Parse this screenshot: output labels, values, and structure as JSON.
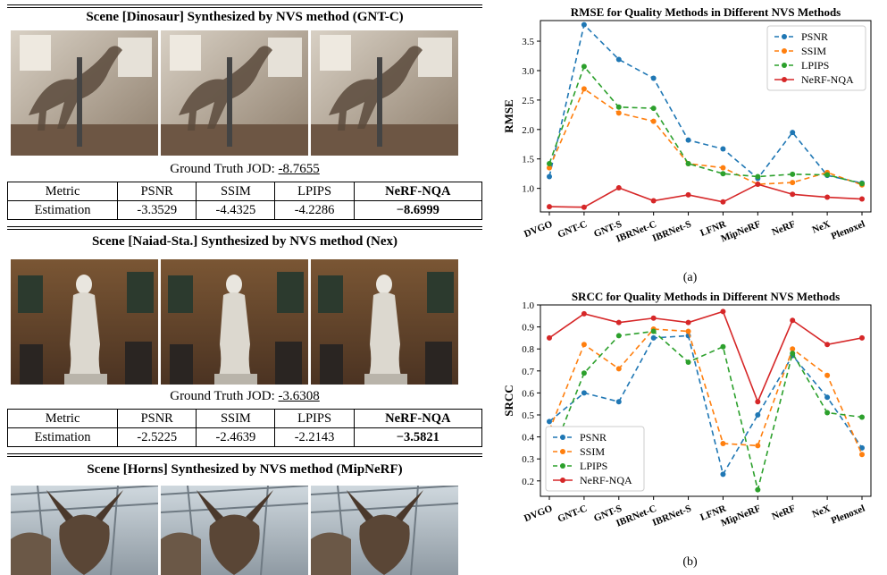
{
  "scenes": [
    {
      "title": "Scene [Dinosaur] Synthesized by NVS method (GNT-C)",
      "gt_label": "Ground Truth JOD: ",
      "gt_value": "-8.7655",
      "headers": [
        "Metric",
        "PSNR",
        "SSIM",
        "LPIPS",
        "NeRF-NQA"
      ],
      "row": [
        "Estimation",
        "-3.3529",
        "-4.4325",
        "-4.2286",
        "−8.6999"
      ]
    },
    {
      "title": "Scene [Naiad-Sta.] Synthesized by NVS method (Nex)",
      "gt_label": "Ground Truth JOD: ",
      "gt_value": "-3.6308",
      "headers": [
        "Metric",
        "PSNR",
        "SSIM",
        "LPIPS",
        "NeRF-NQA"
      ],
      "row": [
        "Estimation",
        "-2.5225",
        "-2.4639",
        "-2.2143",
        "−3.5821"
      ]
    },
    {
      "title": "Scene [Horns] Synthesized by NVS method (MipNeRF)"
    }
  ],
  "chart_data": [
    {
      "type": "line",
      "title": "RMSE for Quality Methods in Different NVS Methods",
      "ylabel": "RMSE",
      "xlabel": "",
      "caption": "(a)",
      "categories": [
        "DVGO",
        "GNT-C",
        "GNT-S",
        "IBRNet-C",
        "IBRNet-S",
        "LFNR",
        "MipNeRF",
        "NeRF",
        "NeX",
        "Plenoxel"
      ],
      "ylim": [
        0.6,
        3.85
      ],
      "yticks": [
        1.0,
        1.5,
        2.0,
        2.5,
        3.0,
        3.5
      ],
      "legend": "top-right",
      "series": [
        {
          "name": "PSNR",
          "color": "#1f77b4",
          "dashed": true,
          "values": [
            1.2,
            3.78,
            3.19,
            2.87,
            1.82,
            1.67,
            1.17,
            1.95,
            1.22,
            1.09
          ]
        },
        {
          "name": "SSIM",
          "color": "#ff7f0e",
          "dashed": true,
          "values": [
            1.35,
            2.69,
            2.28,
            2.14,
            1.42,
            1.35,
            1.07,
            1.1,
            1.27,
            1.06
          ]
        },
        {
          "name": "LPIPS",
          "color": "#2ca02c",
          "dashed": true,
          "values": [
            1.42,
            3.07,
            2.38,
            2.36,
            1.42,
            1.25,
            1.2,
            1.24,
            1.23,
            1.08
          ]
        },
        {
          "name": "NeRF-NQA",
          "color": "#d62728",
          "dashed": false,
          "values": [
            0.69,
            0.68,
            1.01,
            0.79,
            0.89,
            0.77,
            1.07,
            0.9,
            0.85,
            0.82
          ]
        }
      ]
    },
    {
      "type": "line",
      "title": "SRCC for Quality Methods in Different NVS Methods",
      "ylabel": "SRCC",
      "xlabel": "",
      "caption": "(b)",
      "categories": [
        "DVGO",
        "GNT-C",
        "GNT-S",
        "IBRNet-C",
        "IBRNet-S",
        "LFNR",
        "MipNeRF",
        "NeRF",
        "NeX",
        "Plenoxel"
      ],
      "ylim": [
        0.13,
        1.0
      ],
      "yticks": [
        0.2,
        0.3,
        0.4,
        0.5,
        0.6,
        0.7,
        0.8,
        0.9,
        1.0
      ],
      "legend": "bottom-left",
      "series": [
        {
          "name": "PSNR",
          "color": "#1f77b4",
          "dashed": true,
          "values": [
            0.47,
            0.6,
            0.56,
            0.85,
            0.86,
            0.23,
            0.5,
            0.77,
            0.58,
            0.35
          ]
        },
        {
          "name": "SSIM",
          "color": "#ff7f0e",
          "dashed": true,
          "values": [
            0.43,
            0.82,
            0.71,
            0.89,
            0.88,
            0.37,
            0.36,
            0.8,
            0.68,
            0.32
          ]
        },
        {
          "name": "LPIPS",
          "color": "#2ca02c",
          "dashed": true,
          "values": [
            0.29,
            0.69,
            0.86,
            0.88,
            0.74,
            0.81,
            0.16,
            0.78,
            0.51,
            0.49
          ]
        },
        {
          "name": "NeRF-NQA",
          "color": "#d62728",
          "dashed": false,
          "values": [
            0.85,
            0.96,
            0.92,
            0.94,
            0.92,
            0.97,
            0.56,
            0.93,
            0.82,
            0.85
          ]
        }
      ]
    }
  ]
}
